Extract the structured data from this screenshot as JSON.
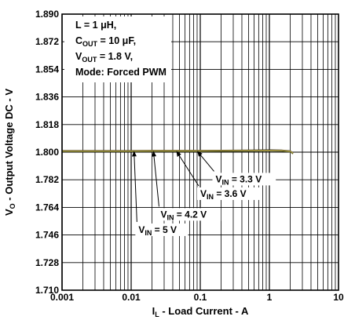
{
  "chart_data": {
    "type": "line",
    "title": "",
    "xlabel": {
      "main": "I",
      "sub": "L",
      "rest": " - Load Current - A"
    },
    "ylabel": {
      "main": "V",
      "sub": "O",
      "rest": " - Output Voltage DC - V"
    },
    "x_scale": "log",
    "xlim": [
      0.001,
      10
    ],
    "ylim": [
      1.71,
      1.89
    ],
    "x_ticks": [
      {
        "value": 0.001,
        "label": "0.001"
      },
      {
        "value": 0.01,
        "label": "0.01"
      },
      {
        "value": 0.1,
        "label": "0.1"
      },
      {
        "value": 1,
        "label": "1"
      },
      {
        "value": 10,
        "label": "10"
      }
    ],
    "y_ticks": [
      {
        "value": 1.71,
        "label": "1.710"
      },
      {
        "value": 1.728,
        "label": "1.728"
      },
      {
        "value": 1.746,
        "label": "1.746"
      },
      {
        "value": 1.764,
        "label": "1.764"
      },
      {
        "value": 1.782,
        "label": "1.782"
      },
      {
        "value": 1.8,
        "label": "1.800"
      },
      {
        "value": 1.818,
        "label": "1.818"
      },
      {
        "value": 1.836,
        "label": "1.836"
      },
      {
        "value": 1.854,
        "label": "1.854"
      },
      {
        "value": 1.872,
        "label": "1.872"
      },
      {
        "value": 1.89,
        "label": "1.890"
      }
    ],
    "grid": true,
    "conditions": [
      [
        {
          "t": "L = 1 "
        },
        {
          "t": "μ"
        },
        {
          "t": "H,"
        }
      ],
      [
        {
          "t": "C"
        },
        {
          "t": "OUT",
          "sub": true
        },
        {
          "t": " = 10 "
        },
        {
          "t": "μ"
        },
        {
          "t": "F,"
        }
      ],
      [
        {
          "t": "V"
        },
        {
          "t": "OUT",
          "sub": true
        },
        {
          "t": " = 1.8 V,"
        }
      ],
      [
        {
          "t": "Mode: Forced PWM"
        }
      ]
    ],
    "series": [
      {
        "color": "#000000",
        "x": [
          0.001,
          0.002,
          0.005,
          0.01,
          0.02,
          0.05,
          0.1,
          0.2,
          0.5,
          1,
          1.5,
          2,
          2.2
        ],
        "y": [
          1.801,
          1.801,
          1.801,
          1.801,
          1.8011,
          1.8011,
          1.8011,
          1.8012,
          1.8013,
          1.8014,
          1.8013,
          1.8008,
          1.7995
        ]
      },
      {
        "color": "#c9a64a",
        "x": [
          0.001,
          0.002,
          0.005,
          0.01,
          0.02,
          0.05,
          0.1,
          0.2,
          0.5,
          1,
          1.5,
          2,
          2.2
        ],
        "y": [
          1.8008,
          1.8008,
          1.8008,
          1.8008,
          1.8009,
          1.8009,
          1.8009,
          1.801,
          1.8011,
          1.8012,
          1.8011,
          1.8006,
          1.7993
        ]
      },
      {
        "color": "#e8d060",
        "x": [
          0.001,
          0.002,
          0.005,
          0.01,
          0.02,
          0.05,
          0.1,
          0.2,
          0.5,
          1,
          1.5,
          2,
          2.2
        ],
        "y": [
          1.8006,
          1.8006,
          1.8006,
          1.8006,
          1.8007,
          1.8007,
          1.8007,
          1.8008,
          1.8009,
          1.801,
          1.8009,
          1.8004,
          1.7991
        ]
      },
      {
        "color": "#6b6b2a",
        "x": [
          0.001,
          0.002,
          0.005,
          0.01,
          0.02,
          0.05,
          0.1,
          0.2,
          0.5,
          1,
          1.5,
          2,
          2.2
        ],
        "y": [
          1.8004,
          1.8004,
          1.8004,
          1.8004,
          1.8005,
          1.8005,
          1.8005,
          1.8006,
          1.8007,
          1.8008,
          1.8007,
          1.8002,
          1.7989
        ]
      }
    ],
    "annotations": [
      {
        "prefix": "V",
        "sub": "IN",
        "text": " = 3.3 V",
        "point": [
          0.09,
          1.8008
        ],
        "label_at": [
          0.15,
          1.7865
        ]
      },
      {
        "prefix": "V",
        "sub": "IN",
        "text": " = 3.6 V",
        "point": [
          0.045,
          1.8008
        ],
        "label_at": [
          0.09,
          1.777
        ]
      },
      {
        "prefix": "V",
        "sub": "IN",
        "text": " = 4.2 V",
        "point": [
          0.021,
          1.8008
        ],
        "label_at": [
          0.024,
          1.7635
        ]
      },
      {
        "prefix": "V",
        "sub": "IN",
        "text": " = 5 V",
        "point": [
          0.011,
          1.8008
        ],
        "label_at": [
          0.0115,
          1.7535
        ]
      }
    ]
  }
}
